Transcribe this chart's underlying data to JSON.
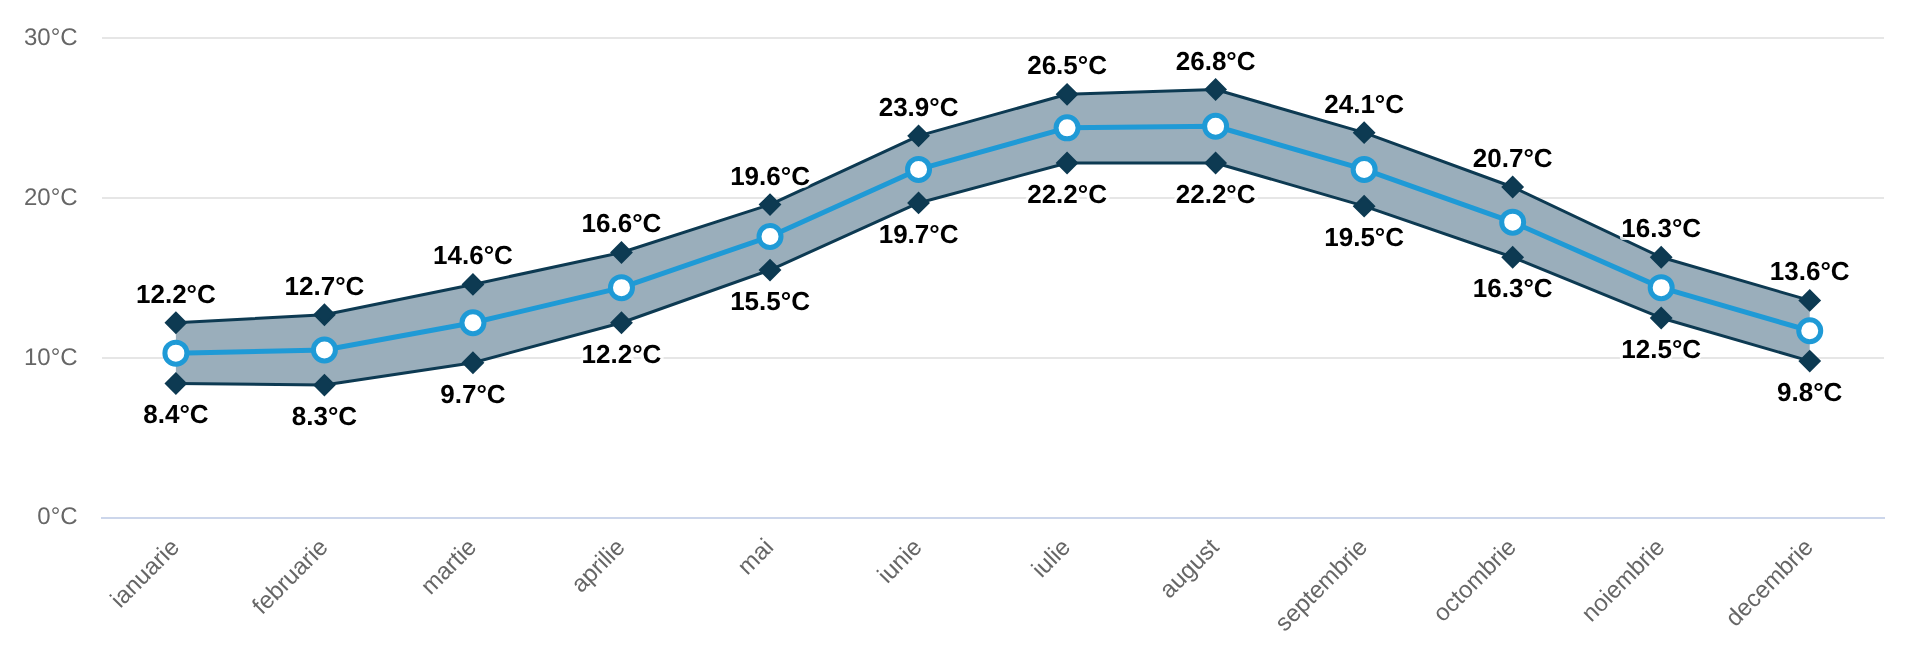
{
  "chart_data": {
    "type": "line",
    "categories": [
      "ianuarie",
      "februarie",
      "martie",
      "aprilie",
      "mai",
      "iunie",
      "iulie",
      "august",
      "septembrie",
      "octombrie",
      "noiembrie",
      "decembrie"
    ],
    "series": [
      {
        "type": "line",
        "color": "#0d3a52",
        "marker": "diamond",
        "values": [
          12.2,
          12.7,
          14.6,
          16.6,
          19.6,
          23.9,
          26.5,
          26.8,
          24.1,
          20.7,
          16.3,
          13.6
        ],
        "value_labels": [
          "12.2°C",
          "12.7°C",
          "14.6°C",
          "16.6°C",
          "19.6°C",
          "23.9°C",
          "26.5°C",
          "26.8°C",
          "24.1°C",
          "20.7°C",
          "16.3°C",
          "13.6°C"
        ]
      },
      {
        "type": "line",
        "color": "#0d3a52",
        "marker": "diamond",
        "values": [
          8.4,
          8.3,
          9.7,
          12.2,
          15.5,
          19.7,
          22.2,
          22.2,
          19.5,
          16.3,
          12.5,
          9.8
        ],
        "value_labels": [
          "8.4°C",
          "8.3°C",
          "9.7°C",
          "12.2°C",
          "15.5°C",
          "19.7°C",
          "22.2°C",
          "22.2°C",
          "19.5°C",
          "16.3°C",
          "12.5°C",
          "9.8°C"
        ]
      },
      {
        "type": "line",
        "color": "#1f9ad6",
        "marker": "circle",
        "values": [
          10.3,
          10.5,
          12.2,
          14.4,
          17.6,
          21.8,
          24.4,
          24.5,
          21.8,
          18.5,
          14.4,
          11.7
        ],
        "lower": [
          8.4,
          8.3,
          9.7,
          12.2,
          15.5,
          19.7,
          22.2,
          22.2,
          19.5,
          16.3,
          12.5,
          9.8
        ],
        "upper": [
          12.2,
          12.7,
          14.6,
          16.6,
          19.6,
          23.9,
          26.5,
          26.8,
          24.1,
          20.7,
          16.3,
          13.6
        ]
      }
    ],
    "ylim": [
      0,
      30
    ],
    "yticks": [
      {
        "value": 0,
        "label": "0°C"
      },
      {
        "value": 10,
        "label": "10°C"
      },
      {
        "value": 20,
        "label": "20°C"
      },
      {
        "value": 30,
        "label": "30°C"
      }
    ],
    "grid": "y",
    "legend": false
  }
}
